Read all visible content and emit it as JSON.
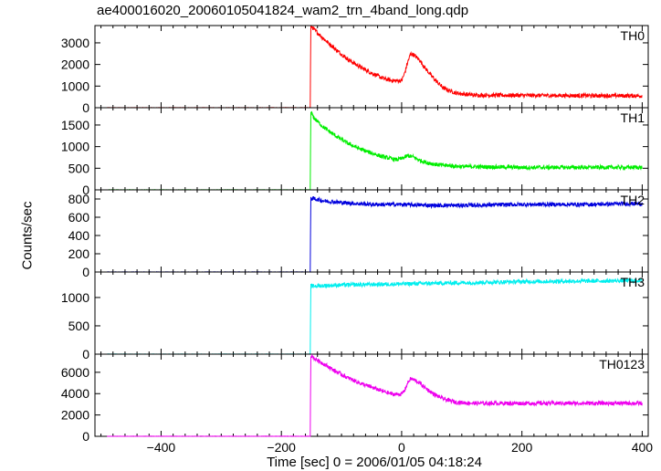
{
  "chart_data": {
    "type": "line",
    "title": "ae400016020_20060105041824_wam2_trn_4band_long.qdp",
    "xlabel": "Time [sec] 0 = 2006/01/05 04:18:24",
    "ylabel": "Counts/sec",
    "xlim": [
      -510,
      410
    ],
    "x_ticks": [
      -400,
      -200,
      0,
      200,
      400
    ],
    "x_tick_labels": [
      "−400",
      "−200",
      "0",
      "200",
      "400"
    ],
    "grid": false,
    "panels": [
      {
        "name": "TH0",
        "color": "#ff0000",
        "ylim": [
          0,
          3800
        ],
        "y_ticks": [
          0,
          1000,
          2000,
          3000
        ],
        "series": {
          "x": [
            -490,
            -300,
            -152,
            -151,
            -145,
            -130,
            -110,
            -90,
            -70,
            -50,
            -30,
            -15,
            0,
            5,
            10,
            15,
            20,
            30,
            40,
            55,
            70,
            90,
            120,
            200,
            300,
            400
          ],
          "y": [
            0,
            0,
            0,
            3800,
            3600,
            3200,
            2700,
            2250,
            1900,
            1600,
            1350,
            1250,
            1250,
            1600,
            2100,
            2500,
            2450,
            2200,
            1800,
            1300,
            900,
            680,
            580,
            570,
            560,
            550
          ]
        }
      },
      {
        "name": "TH1",
        "color": "#00ee00",
        "ylim": [
          0,
          1900
        ],
        "y_ticks": [
          0,
          500,
          1000,
          1500
        ],
        "series": {
          "x": [
            -490,
            -300,
            -152,
            -151,
            -145,
            -130,
            -110,
            -90,
            -70,
            -50,
            -30,
            -10,
            0,
            10,
            20,
            30,
            45,
            60,
            80,
            100,
            150,
            200,
            300,
            400
          ],
          "y": [
            0,
            0,
            0,
            1800,
            1650,
            1450,
            1250,
            1080,
            950,
            850,
            760,
            700,
            720,
            790,
            760,
            680,
            620,
            580,
            560,
            540,
            530,
            520,
            520,
            520
          ]
        }
      },
      {
        "name": "TH2",
        "color": "#0000dd",
        "ylim": [
          0,
          900
        ],
        "y_ticks": [
          0,
          200,
          400,
          600,
          800
        ],
        "series": {
          "x": [
            -490,
            -300,
            -152,
            -151,
            -130,
            -100,
            -50,
            0,
            50,
            100,
            200,
            300,
            400
          ],
          "y": [
            0,
            0,
            0,
            810,
            780,
            760,
            740,
            740,
            730,
            730,
            740,
            740,
            750
          ]
        }
      },
      {
        "name": "TH3",
        "color": "#00eeee",
        "ylim": [
          0,
          1450
        ],
        "y_ticks": [
          0,
          500,
          1000
        ],
        "series": {
          "x": [
            -490,
            -300,
            -152,
            -151,
            -130,
            -100,
            -50,
            0,
            50,
            100,
            200,
            300,
            400
          ],
          "y": [
            0,
            0,
            0,
            1200,
            1210,
            1220,
            1230,
            1240,
            1250,
            1260,
            1280,
            1290,
            1300
          ]
        }
      },
      {
        "name": "TH0123",
        "color": "#ee00ee",
        "ylim": [
          0,
          7700
        ],
        "y_ticks": [
          0,
          2000,
          4000,
          6000
        ],
        "series": {
          "x": [
            -490,
            -300,
            -152,
            -151,
            -145,
            -130,
            -110,
            -90,
            -70,
            -50,
            -30,
            -15,
            0,
            5,
            10,
            15,
            20,
            30,
            40,
            55,
            70,
            90,
            120,
            200,
            300,
            400
          ],
          "y": [
            0,
            0,
            0,
            7600,
            7300,
            6800,
            6100,
            5500,
            5000,
            4600,
            4200,
            3950,
            3950,
            4300,
            5000,
            5400,
            5300,
            5000,
            4500,
            3900,
            3500,
            3200,
            3100,
            3100,
            3100,
            3100
          ]
        }
      }
    ]
  }
}
